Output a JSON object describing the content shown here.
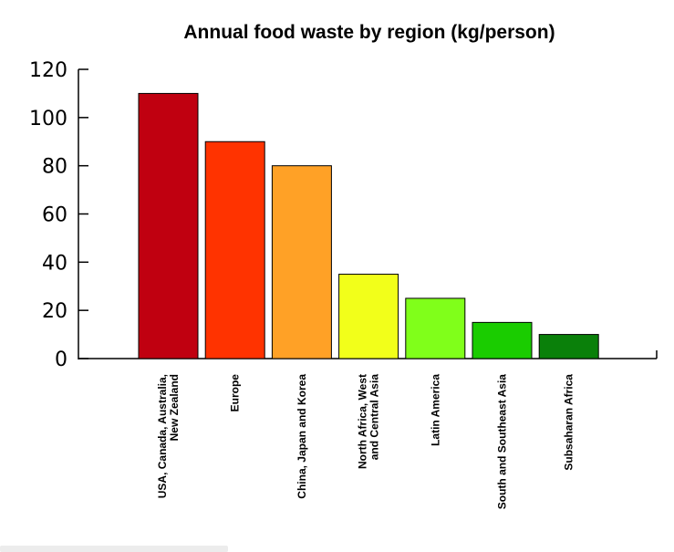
{
  "chart_data": {
    "type": "bar",
    "title": "Annual food waste by region (kg/person)",
    "xlabel": "",
    "ylabel": "",
    "ylim": [
      0,
      120
    ],
    "yticks": [
      "0",
      "20",
      "40",
      "60",
      "80",
      "100",
      "120"
    ],
    "grid": false,
    "legend": "none",
    "categories": [
      [
        "USA, Canada, Australia,",
        "New Zealand"
      ],
      [
        "Europe"
      ],
      [
        "China, Japan and Korea"
      ],
      [
        "North Africa, West",
        "and Central Asia"
      ],
      [
        "Latin America"
      ],
      [
        "South and Southeast Asia"
      ],
      [
        "Subsaharan Africa"
      ]
    ],
    "values": [
      110,
      90,
      80,
      35,
      25,
      15,
      10
    ],
    "colors": [
      "#c00010",
      "#ff3300",
      "#ffa126",
      "#f2ff1a",
      "#80ff1a",
      "#1acc00",
      "#0a800a"
    ]
  }
}
